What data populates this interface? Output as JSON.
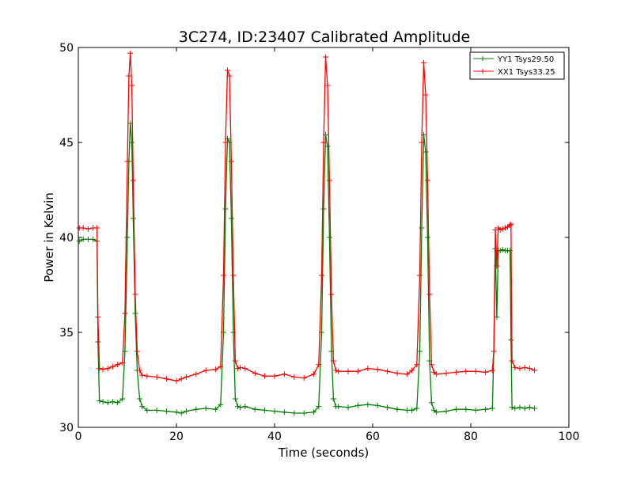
{
  "chart_data": {
    "type": "line",
    "title": "3C274, ID:23407 Calibrated Amplitude",
    "xlabel": "Time (seconds)",
    "ylabel": "Power in Kelvin",
    "xlim": [
      0,
      100
    ],
    "ylim": [
      30,
      50
    ],
    "xticks": [
      0,
      20,
      40,
      60,
      80,
      100
    ],
    "xtick_labels": [
      "0",
      "20",
      "40",
      "60",
      "80",
      "100"
    ],
    "yticks": [
      30,
      35,
      40,
      45,
      50
    ],
    "ytick_labels": [
      "30",
      "35",
      "40",
      "45",
      "50"
    ],
    "grid": false,
    "legend_position": "top-right",
    "marker": "+",
    "series": [
      {
        "name": "YY1 Tsys29.50",
        "color": "#008000",
        "x": [
          0.2,
          1,
          2,
          3,
          3.8,
          4,
          4.3,
          5,
          6,
          7,
          8,
          9,
          9.5,
          10,
          10.3,
          10.6,
          10.9,
          11.2,
          11.6,
          12,
          12.5,
          13,
          14,
          16,
          18,
          20,
          21,
          22,
          24,
          26,
          28,
          29,
          29.6,
          30,
          30.4,
          30.8,
          31.2,
          31.6,
          32,
          32.5,
          33,
          34,
          36,
          38,
          40,
          42,
          44,
          46,
          48,
          49,
          49.6,
          50,
          50.4,
          50.8,
          51.2,
          51.6,
          52,
          52.5,
          53,
          55,
          57,
          59,
          61,
          63,
          65,
          67,
          68,
          69,
          69.6,
          70,
          70.4,
          70.8,
          71.2,
          71.6,
          72,
          72.5,
          73,
          75,
          77,
          79,
          81,
          83,
          84.4,
          84.7,
          85,
          85.3,
          85.6,
          86,
          86.5,
          87,
          87.5,
          88,
          88.2,
          88.4,
          89,
          90,
          91,
          92,
          93
        ],
        "y": [
          39.8,
          39.9,
          39.9,
          39.9,
          39.8,
          34.5,
          31.4,
          31.35,
          31.3,
          31.35,
          31.3,
          31.5,
          34,
          40,
          44,
          46,
          45,
          41,
          36,
          33,
          31.5,
          31.1,
          30.9,
          30.9,
          30.85,
          30.8,
          30.75,
          30.85,
          30.95,
          31,
          30.95,
          31.2,
          35,
          41.5,
          45.2,
          45,
          41,
          35,
          31.5,
          31.1,
          31.05,
          31.1,
          30.95,
          30.9,
          30.85,
          30.8,
          30.75,
          30.75,
          30.8,
          31.1,
          35,
          41.5,
          45.4,
          44.8,
          40,
          34,
          31.5,
          31.1,
          31.1,
          31.05,
          31.15,
          31.2,
          31.15,
          31.05,
          30.95,
          30.9,
          30.9,
          31,
          34,
          40.5,
          45.4,
          44.5,
          40,
          33.5,
          31.3,
          30.9,
          30.8,
          30.85,
          30.95,
          30.95,
          30.9,
          30.95,
          31,
          34,
          39.4,
          35.8,
          39.3,
          39.3,
          39.35,
          39.3,
          39.3,
          39.3,
          34.6,
          31.05,
          31,
          31.05,
          31,
          31.05,
          31
        ]
      },
      {
        "name": "XX1 Tsys33.25",
        "color": "#ff0000",
        "x": [
          0.2,
          1,
          2,
          3,
          3.8,
          4,
          4.3,
          5,
          6,
          7,
          8,
          9,
          9.5,
          10,
          10.3,
          10.6,
          10.9,
          11.2,
          11.6,
          12,
          12.5,
          13,
          14,
          16,
          18,
          20,
          21,
          22,
          24,
          26,
          28,
          29,
          29.6,
          30,
          30.4,
          30.8,
          31.2,
          31.6,
          32,
          32.5,
          33,
          34,
          36,
          38,
          40,
          42,
          44,
          46,
          48,
          49,
          49.6,
          50,
          50.4,
          50.8,
          51.2,
          51.6,
          52,
          52.5,
          53,
          55,
          57,
          59,
          61,
          63,
          65,
          67,
          68,
          69,
          69.6,
          70,
          70.4,
          70.8,
          71.2,
          71.6,
          72,
          72.5,
          73,
          75,
          77,
          79,
          81,
          83,
          84.4,
          84.7,
          85,
          85.3,
          85.6,
          86,
          86.5,
          87,
          87.5,
          88,
          88.2,
          88.4,
          89,
          90,
          91,
          92,
          93
        ],
        "y": [
          40.5,
          40.5,
          40.45,
          40.5,
          40.5,
          35.8,
          33.1,
          33.05,
          33.1,
          33.2,
          33.3,
          33.4,
          36,
          44,
          48.5,
          49.7,
          48,
          43,
          37,
          34,
          33,
          32.75,
          32.7,
          32.65,
          32.55,
          32.45,
          32.55,
          32.65,
          32.8,
          33,
          33.05,
          33.2,
          38,
          45,
          48.8,
          48.5,
          44,
          38,
          33.5,
          33.1,
          33.15,
          33.1,
          32.85,
          32.7,
          32.7,
          32.8,
          32.65,
          32.6,
          32.8,
          33.3,
          38,
          45,
          49.5,
          48,
          43,
          37,
          33.5,
          33.0,
          32.95,
          32.95,
          32.95,
          33.1,
          33.05,
          32.95,
          32.85,
          32.8,
          33,
          33.3,
          38,
          45,
          49.2,
          47.5,
          43,
          37,
          33.3,
          32.9,
          32.8,
          32.85,
          32.9,
          32.95,
          32.95,
          32.9,
          33,
          34,
          40.4,
          38.5,
          40.5,
          40.4,
          40.45,
          40.5,
          40.55,
          40.65,
          40.7,
          33.5,
          33.15,
          33.1,
          33.15,
          33.1,
          33.0
        ]
      }
    ]
  }
}
